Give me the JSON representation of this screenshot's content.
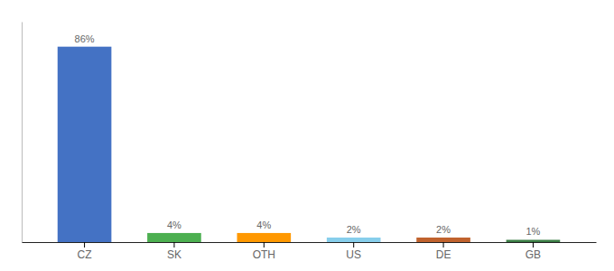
{
  "chart_data": {
    "type": "bar",
    "categories": [
      "CZ",
      "SK",
      "OTH",
      "US",
      "DE",
      "GB"
    ],
    "values": [
      86,
      4,
      4,
      2,
      2,
      1
    ],
    "value_labels": [
      "86%",
      "4%",
      "4%",
      "2%",
      "2%",
      "1%"
    ],
    "colors": [
      "#4472c4",
      "#4caf50",
      "#ff9800",
      "#87ceeb",
      "#c0622d",
      "#3a7d44"
    ],
    "ylim": [
      0,
      97
    ],
    "data_labels": true,
    "tick_labels": "x",
    "grid": false
  }
}
